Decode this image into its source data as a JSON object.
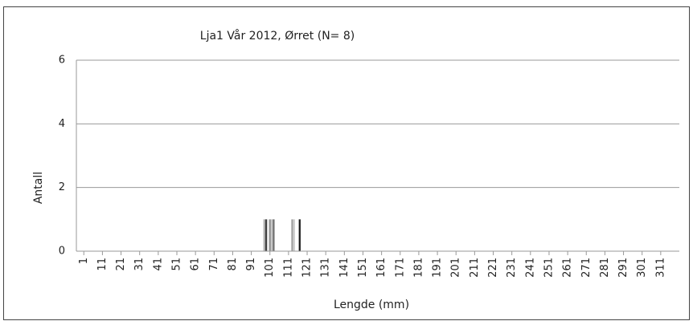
{
  "chart_data": {
    "type": "histogram",
    "title": "Lja1 Vår 2012, Ørret (N= 8)",
    "xlabel": "Lengde (mm)",
    "ylabel": "Antall",
    "x": [
      98,
      99,
      101,
      102,
      103,
      113,
      114,
      117
    ],
    "values": [
      1,
      1,
      1,
      1,
      1,
      1,
      1,
      1
    ],
    "colors": [
      "#b0b0b0",
      "#404040",
      "#909090",
      "#c8c8c8",
      "#707070",
      "#a0a0a0",
      "#d0d0d0",
      "#202020"
    ],
    "xlim": [
      -3,
      321
    ],
    "xticks": [
      1,
      11,
      21,
      31,
      41,
      51,
      61,
      71,
      81,
      91,
      101,
      111,
      121,
      131,
      141,
      151,
      161,
      171,
      181,
      191,
      201,
      211,
      221,
      231,
      241,
      251,
      261,
      271,
      281,
      291,
      301,
      311
    ],
    "ylim": [
      0,
      6
    ],
    "yticks": [
      0,
      2,
      4,
      6
    ],
    "grid": true
  }
}
